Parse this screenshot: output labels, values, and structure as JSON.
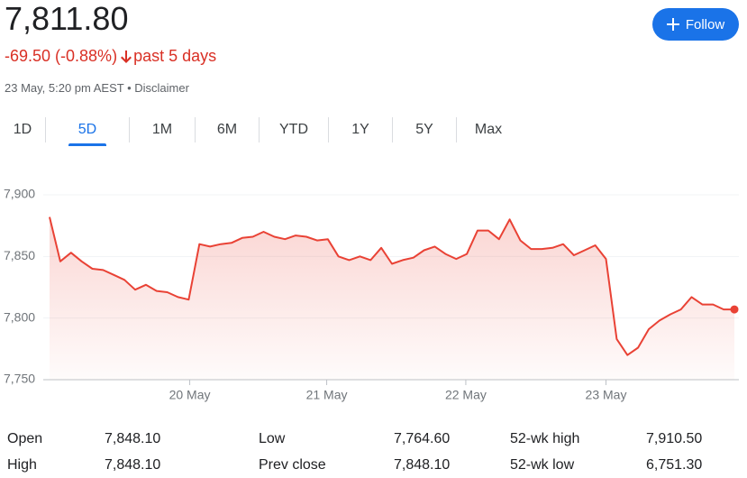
{
  "header": {
    "price": "7,811.80",
    "change": "-69.50 (-0.88%)",
    "period": "past 5 days",
    "timestamp": "23 May, 5:20 pm AEST",
    "disclaimer": "Disclaimer",
    "follow": "Follow"
  },
  "tabs": [
    "1D",
    "5D",
    "1M",
    "6M",
    "YTD",
    "1Y",
    "5Y",
    "Max"
  ],
  "chart_data": {
    "type": "line",
    "color": "#e94235",
    "values": [
      7882,
      7846,
      7853,
      7846,
      7840,
      7839,
      7835,
      7831,
      7823,
      7827,
      7822,
      7821,
      7817,
      7815,
      7860,
      7858,
      7860,
      7861,
      7865,
      7866,
      7870,
      7866,
      7864,
      7867,
      7866,
      7863,
      7864,
      7850,
      7847,
      7850,
      7847,
      7857,
      7844,
      7847,
      7849,
      7855,
      7858,
      7852,
      7848,
      7852,
      7871,
      7871,
      7864,
      7880,
      7863,
      7856,
      7856,
      7857,
      7860,
      7851,
      7855,
      7859,
      7848,
      7783,
      7770,
      7776,
      7791,
      7798,
      7803,
      7807,
      7817,
      7811,
      7811,
      7807,
      7807
    ],
    "xlim": [
      0,
      64
    ],
    "xticks": [
      {
        "value": 13.1,
        "label": "20 May"
      },
      {
        "value": 25.9,
        "label": "21 May"
      },
      {
        "value": 38.9,
        "label": "22 May"
      },
      {
        "value": 52,
        "label": "23 May"
      }
    ],
    "ylim": [
      7750,
      7900
    ],
    "yticks": [
      {
        "value": 7750,
        "label": "7,750"
      },
      {
        "value": 7800,
        "label": "7,800"
      },
      {
        "value": 7850,
        "label": "7,850"
      },
      {
        "value": 7900,
        "label": "7,900"
      }
    ],
    "grid": true
  },
  "stats": [
    {
      "label": "Open",
      "value": "7,848.10"
    },
    {
      "label": "High",
      "value": "7,848.10"
    },
    {
      "label": "Low",
      "value": "7,764.60"
    },
    {
      "label": "Prev close",
      "value": "7,848.10"
    },
    {
      "label": "52-wk high",
      "value": "7,910.50"
    },
    {
      "label": "52-wk low",
      "value": "6,751.30"
    }
  ]
}
